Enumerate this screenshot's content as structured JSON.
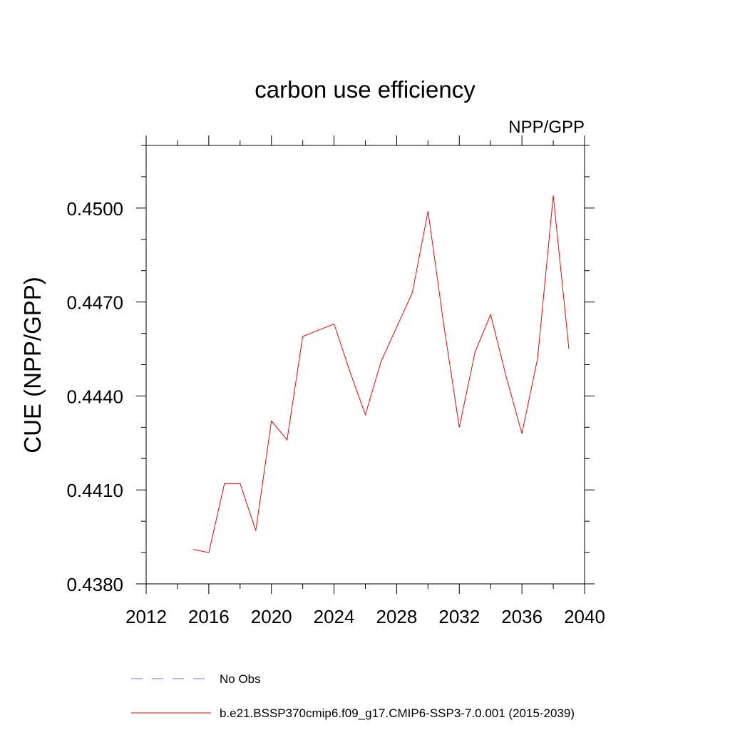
{
  "chart_data": {
    "type": "line",
    "title": "carbon use efficiency",
    "subtitle": "NPP/GPP",
    "xlabel": "",
    "ylabel": "CUE  (NPP/GPP)",
    "xlim": [
      2012,
      2040
    ],
    "ylim": [
      0.438,
      0.452
    ],
    "x_ticks": [
      2012,
      2016,
      2020,
      2024,
      2028,
      2032,
      2036,
      2040
    ],
    "x_tick_labels": [
      "2012",
      "2016",
      "2020",
      "2024",
      "2028",
      "2032",
      "2036",
      "2040"
    ],
    "x_minor_step": 2,
    "y_ticks": [
      0.438,
      0.441,
      0.444,
      0.447,
      0.45
    ],
    "y_tick_labels": [
      "0.4380",
      "0.4410",
      "0.4440",
      "0.4470",
      "0.4500"
    ],
    "y_minor_step": 0.001,
    "grid": false,
    "series": [
      {
        "name": "b.e21.BSSP370cmip6.f09_g17.CMIP6-SSP3-7.0.001 (2015-2039)",
        "color": "#ff0000",
        "x": [
          2015,
          2016,
          2017,
          2018,
          2019,
          2020,
          2021,
          2022,
          2023,
          2024,
          2025,
          2026,
          2027,
          2028,
          2029,
          2030,
          2031,
          2032,
          2033,
          2034,
          2035,
          2036,
          2037,
          2038,
          2039
        ],
        "y": [
          0.4391,
          0.439,
          0.4412,
          0.4412,
          0.4397,
          0.4432,
          0.4426,
          0.4459,
          0.4461,
          0.4463,
          0.4448,
          0.4434,
          0.4451,
          0.4462,
          0.4473,
          0.4499,
          0.4463,
          0.443,
          0.4454,
          0.4466,
          0.4446,
          0.4428,
          0.4452,
          0.4504,
          0.4455
        ]
      }
    ],
    "legend": {
      "position": "bottom",
      "entries": [
        {
          "label": "No Obs",
          "style": "dashed",
          "color": "#7b7bc8"
        },
        {
          "label": "b.e21.BSSP370cmip6.f09_g17.CMIP6-SSP3-7.0.001 (2015-2039)",
          "style": "solid",
          "color": "#ff0000"
        }
      ]
    }
  }
}
